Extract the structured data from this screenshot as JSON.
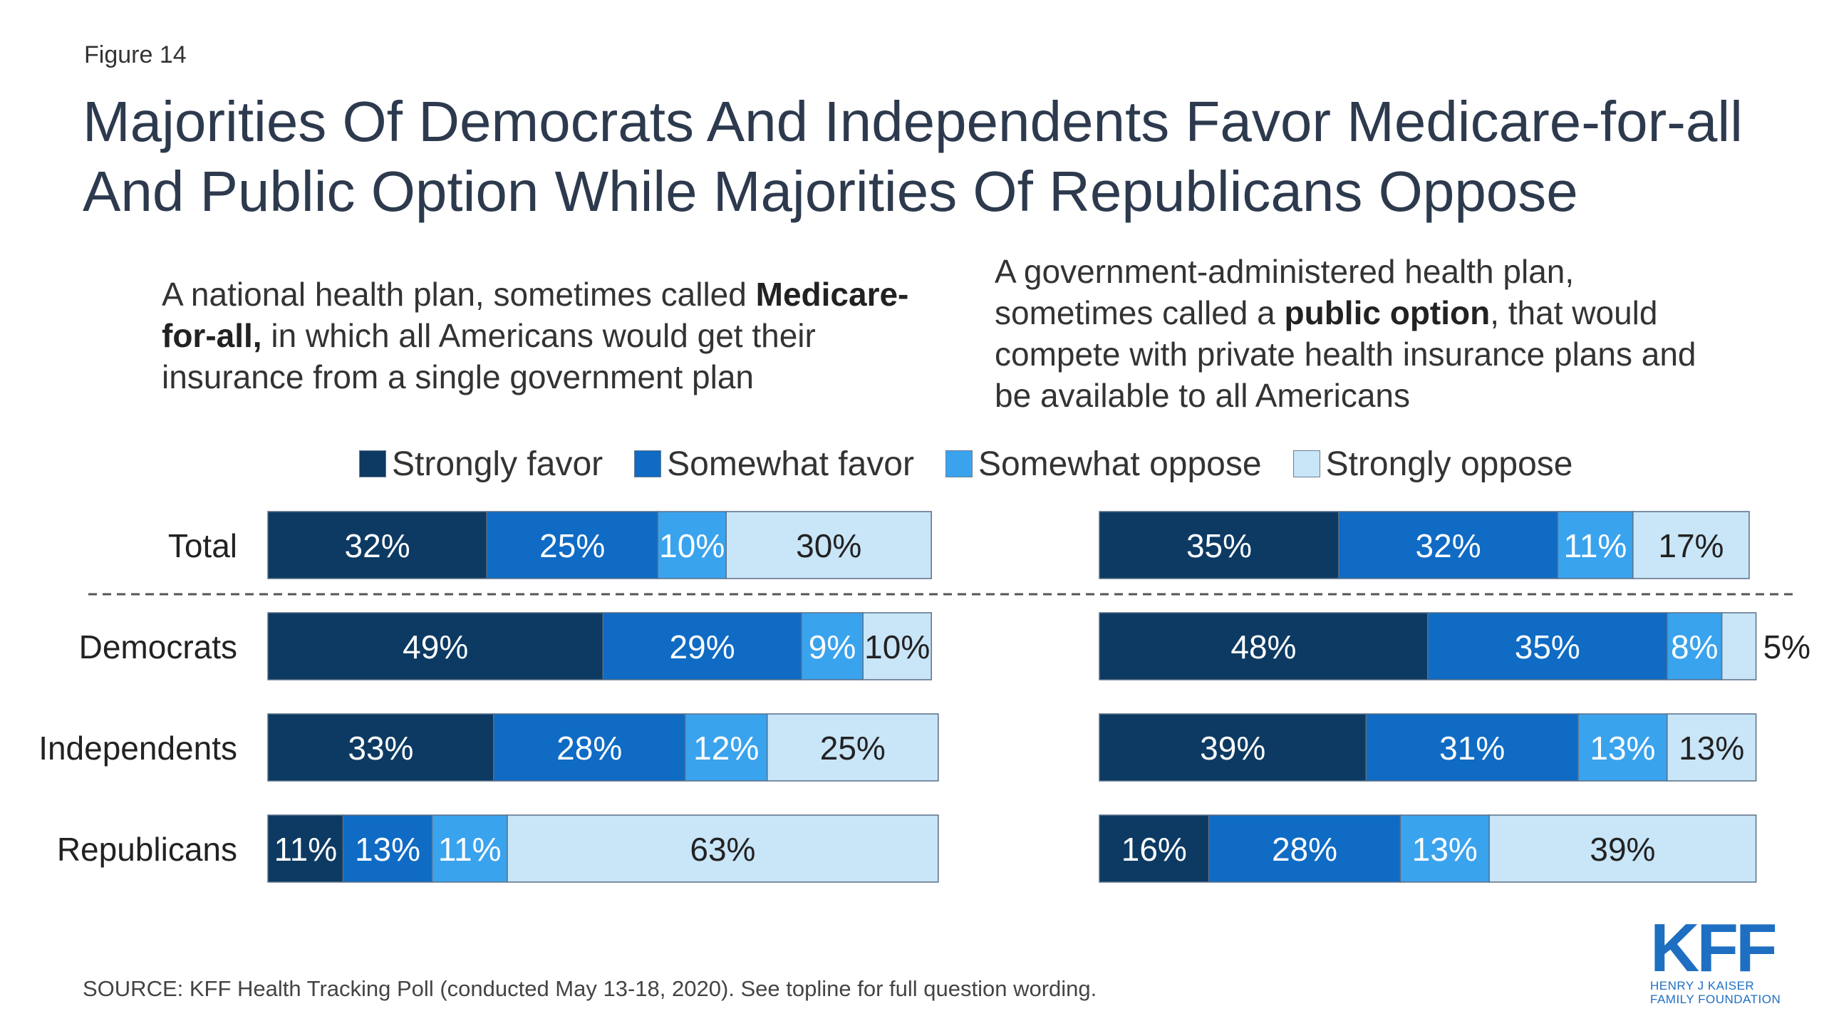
{
  "figure_label": "Figure 14",
  "description_left": {
    "pre": "A national health plan, sometimes called ",
    "bold": "Medicare-for-all,",
    "post": " in which all Americans would get their insurance from a single government plan"
  },
  "description_right": {
    "pre": "A government-administered health plan, sometimes called a ",
    "bold": "public option",
    "post": ", that would compete with private health insurance plans and be available to all Americans"
  },
  "source": "SOURCE: KFF Health Tracking Poll (conducted May 13-18, 2020). See topline for full question wording.",
  "logo": {
    "mark": "KFF",
    "line1": "HENRY J KAISER",
    "line2": "FAMILY FOUNDATION"
  },
  "colors": {
    "strongly_favor": "#0d3a63",
    "somewhat_favor": "#0f6bc4",
    "somewhat_oppose": "#3aa3ee",
    "strongly_oppose": "#c9e5f8",
    "title": "#2d3a4e"
  },
  "chart_data": {
    "type": "bar",
    "orientation": "horizontal",
    "stacked": true,
    "title": "Majorities Of Democrats And Independents Favor Medicare-for-all And Public Option While Majorities Of Republicans Oppose",
    "legend": {
      "placement": "top",
      "entries": [
        "Strongly favor",
        "Somewhat favor",
        "Somewhat oppose",
        "Strongly oppose"
      ]
    },
    "categories": [
      "Total",
      "Democrats",
      "Independents",
      "Republicans"
    ],
    "panels": [
      {
        "name": "Medicare-for-all",
        "series": [
          {
            "name": "Strongly favor",
            "values": [
              32,
              49,
              33,
              11
            ]
          },
          {
            "name": "Somewhat favor",
            "values": [
              25,
              29,
              28,
              13
            ]
          },
          {
            "name": "Somewhat oppose",
            "values": [
              10,
              9,
              12,
              11
            ]
          },
          {
            "name": "Strongly oppose",
            "values": [
              30,
              10,
              25,
              63
            ]
          }
        ],
        "labels": [
          [
            "32%",
            "25%",
            "10%",
            "30%"
          ],
          [
            "49%",
            "29%",
            "9%",
            "10%"
          ],
          [
            "33%",
            "28%",
            "12%",
            "25%"
          ],
          [
            "11%",
            "13%",
            "11%",
            "63%"
          ]
        ]
      },
      {
        "name": "Public option",
        "series": [
          {
            "name": "Strongly favor",
            "values": [
              35,
              48,
              39,
              16
            ]
          },
          {
            "name": "Somewhat favor",
            "values": [
              32,
              35,
              31,
              28
            ]
          },
          {
            "name": "Somewhat oppose",
            "values": [
              11,
              8,
              13,
              13
            ]
          },
          {
            "name": "Strongly oppose",
            "values": [
              17,
              5,
              13,
              39
            ]
          }
        ],
        "labels": [
          [
            "35%",
            "32%",
            "11%",
            "17%"
          ],
          [
            "48%",
            "35%",
            "8%",
            "5%"
          ],
          [
            "39%",
            "31%",
            "13%",
            "13%"
          ],
          [
            "16%",
            "28%",
            "13%",
            "39%"
          ]
        ]
      }
    ],
    "xlim": [
      0,
      100
    ],
    "grid": false
  }
}
